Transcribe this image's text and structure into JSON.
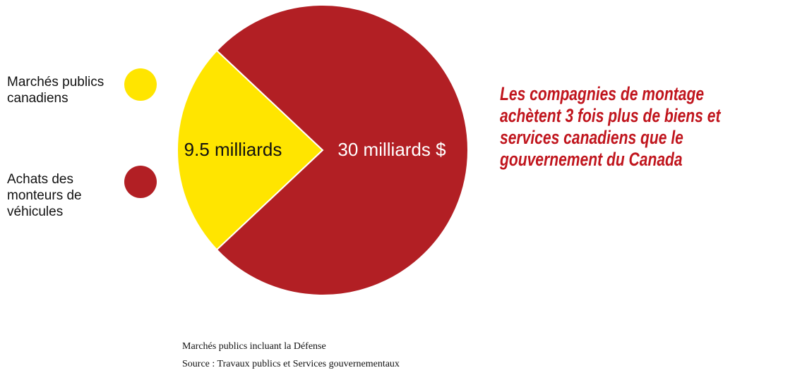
{
  "chart_data": {
    "type": "pie",
    "categories": [
      "Marchés publics canadiens",
      "Achats des monteurs de véhicules"
    ],
    "values": [
      9.5,
      30
    ],
    "value_labels": [
      "9.5 milliards",
      "30 milliards $"
    ],
    "colors": [
      "#ffe500",
      "#b21f24"
    ],
    "annotation": "Les compagnies de montage achètent 3 fois plus de biens et services canadiens que le gouvernement du Canada",
    "notes": [
      "Marchés publics incluant la Défense",
      "Source : Travaux publics et Services gouvernementaux"
    ]
  }
}
